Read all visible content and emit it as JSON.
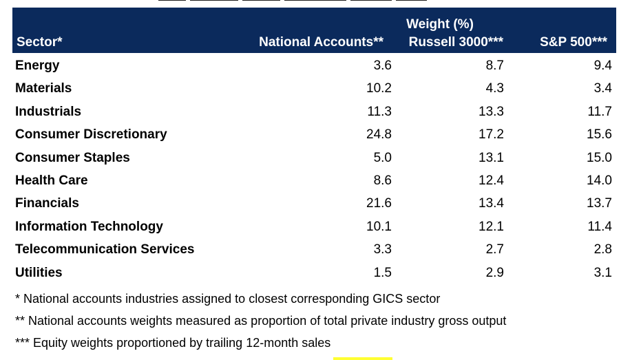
{
  "table": {
    "group_header": "Weight (%)",
    "columns": {
      "sector": "Sector*",
      "national": "National Accounts**",
      "russell": "Russell 3000***",
      "sp500": "S&P 500***"
    },
    "rows": [
      {
        "sector": "Energy",
        "national": "3.6",
        "russell": "8.7",
        "sp500": "9.4"
      },
      {
        "sector": "Materials",
        "national": "10.2",
        "russell": "4.3",
        "sp500": "3.4"
      },
      {
        "sector": "Industrials",
        "national": "11.3",
        "russell": "13.3",
        "sp500": "11.7"
      },
      {
        "sector": "Consumer Discretionary",
        "national": "24.8",
        "russell": "17.2",
        "sp500": "15.6"
      },
      {
        "sector": "Consumer Staples",
        "national": "5.0",
        "russell": "13.1",
        "sp500": "15.0"
      },
      {
        "sector": "Health Care",
        "national": "8.6",
        "russell": "12.4",
        "sp500": "14.0"
      },
      {
        "sector": "Financials",
        "national": "21.6",
        "russell": "13.4",
        "sp500": "13.7"
      },
      {
        "sector": "Information Technology",
        "national": "10.1",
        "russell": "12.1",
        "sp500": "11.4"
      },
      {
        "sector": "Telecommunication Services",
        "national": "3.3",
        "russell": "2.7",
        "sp500": "2.8"
      },
      {
        "sector": "Utilities",
        "national": "1.5",
        "russell": "2.9",
        "sp500": "3.1"
      }
    ]
  },
  "footnotes": [
    "* National accounts industries assigned to closest corresponding GICS sector",
    "** National accounts weights measured as proportion of total private industry gross output",
    "*** Equity weights proportioned by trailing 12-month sales"
  ],
  "colors": {
    "header_background": "#0b2a5c",
    "header_text": "#ffffff",
    "highlight": "#ffff33"
  }
}
